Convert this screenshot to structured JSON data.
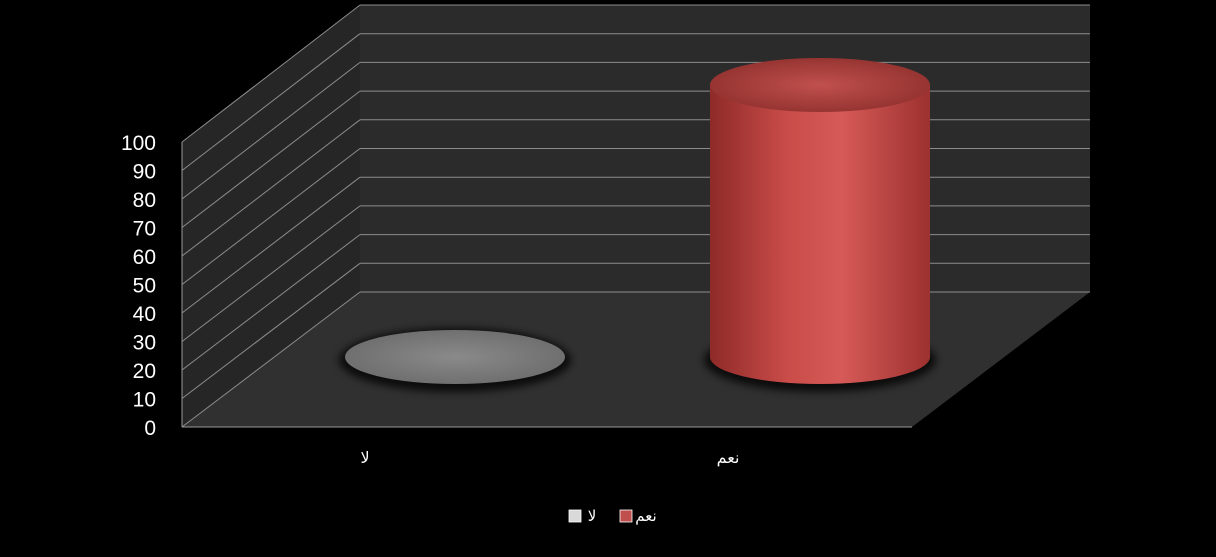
{
  "chart_data": {
    "type": "bar",
    "style": "3d-cylinder",
    "categories": [
      "لا",
      "نعم"
    ],
    "series": [
      {
        "name": "لا",
        "values": [
          0,
          null
        ],
        "color": "#d9d9d9"
      },
      {
        "name": "نعم",
        "values": [
          null,
          100
        ],
        "color": "#c0504d"
      }
    ],
    "ylim": [
      0,
      100
    ],
    "yticks": [
      "0",
      "10",
      "20",
      "30",
      "40",
      "50",
      "60",
      "70",
      "80",
      "90",
      "100"
    ],
    "grid": true,
    "legend_position": "bottom",
    "background": "#000000",
    "wall_color": "#2a2a2a",
    "floor_color": "#2f2f2f"
  }
}
